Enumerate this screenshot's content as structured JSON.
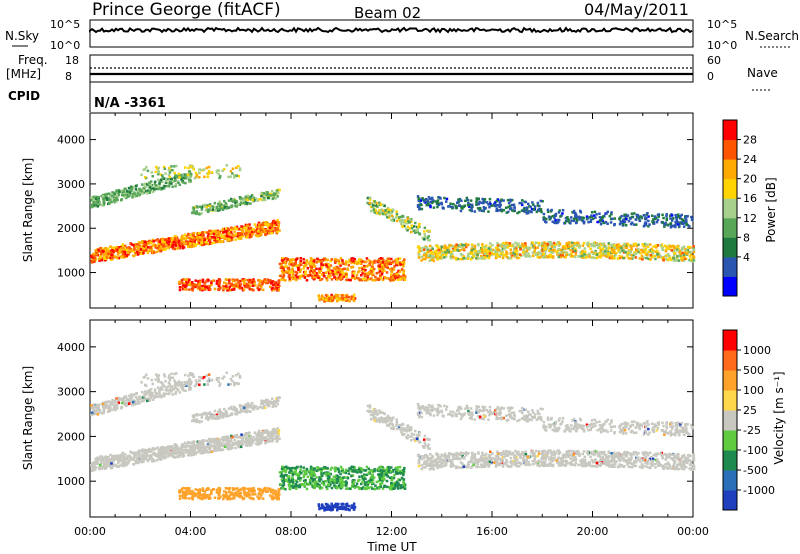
{
  "header": {
    "station": "Prince George (fitACF)",
    "beam": "Beam 02",
    "date": "04/May/2011"
  },
  "top_panels": {
    "nsky_label": "N.Sky",
    "nsearch_label": "N.Search",
    "nsky_ticks": [
      "10^5",
      "10^0"
    ],
    "nsearch_ticks": [
      "10^5",
      "10^0"
    ],
    "freq_label": "Freq.",
    "freq_unit": "[MHz]",
    "freq_ticks": [
      "18",
      "8"
    ],
    "nave_label": "Nave",
    "nave_ticks": [
      "60",
      "0"
    ],
    "cpid_label": "CPID",
    "cpid_value": "N/A -3361"
  },
  "chart_data": [
    {
      "type": "heatmap",
      "panel": "power",
      "ylabel": "Slant Range [km]",
      "xlabel": "Time UT",
      "x_ticks": [
        "00:00",
        "04:00",
        "08:00",
        "12:00",
        "16:00",
        "20:00",
        "00:00"
      ],
      "y_ticks": [
        "1000",
        "2000",
        "3000",
        "4000"
      ],
      "ylim": [
        200,
        4600
      ],
      "xlim_hours": [
        0,
        24
      ],
      "colorbar": {
        "label": "Power [dB]",
        "ticks": [
          "28",
          "24",
          "20",
          "16",
          "12",
          "8",
          "4"
        ],
        "colors": [
          "#0000ff",
          "#2a55b0",
          "#1f7a3f",
          "#58a657",
          "#a8d08d",
          "#ffd400",
          "#ffaa00",
          "#ff5500",
          "#ff0000"
        ]
      }
    },
    {
      "type": "heatmap",
      "panel": "velocity",
      "ylabel": "Slant Range [km]",
      "xlabel": "Time UT",
      "x_ticks": [
        "00:00",
        "04:00",
        "08:00",
        "12:00",
        "16:00",
        "20:00",
        "00:00"
      ],
      "y_ticks": [
        "1000",
        "2000",
        "3000",
        "4000"
      ],
      "ylim": [
        200,
        4600
      ],
      "xlim_hours": [
        0,
        24
      ],
      "colorbar": {
        "label": "Velocity [m s⁻¹]",
        "ticks": [
          "1000",
          "500",
          "100",
          "25",
          "-25",
          "-100",
          "-500",
          "-1000"
        ],
        "colors": [
          "#1f3fbf",
          "#2a6fb8",
          "#1f8a4f",
          "#5fcc3f",
          "#c8c8c0",
          "#ffd84a",
          "#ffa22a",
          "#ff6a1a",
          "#ff0000"
        ]
      }
    }
  ],
  "x_axis_title": "Time UT"
}
